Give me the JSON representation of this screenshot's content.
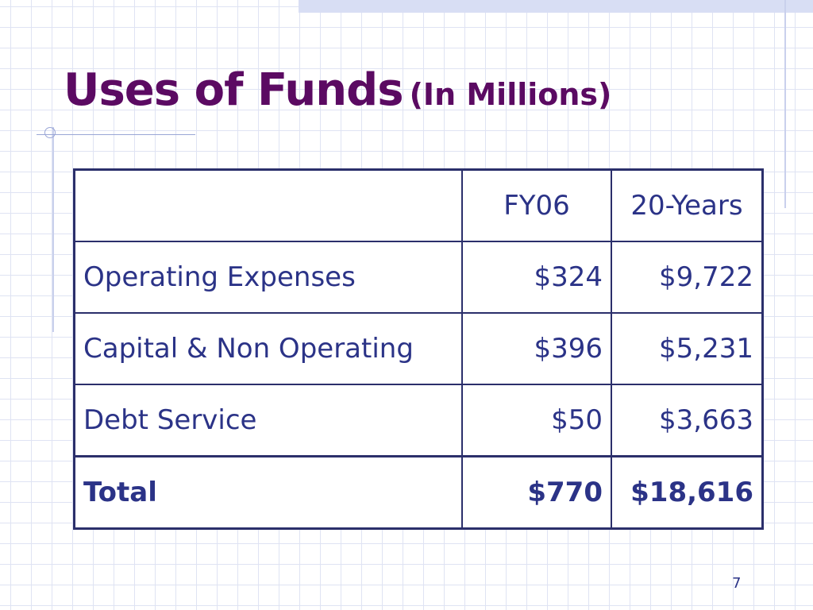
{
  "slide": {
    "title": "Uses of Funds",
    "subtitle": "(In Millions)",
    "page_number": "7"
  },
  "table": {
    "columns": [
      "",
      "FY06",
      "20-Years"
    ],
    "rows": [
      {
        "label": "Operating Expenses",
        "fy06": "$324",
        "years20": "$9,722"
      },
      {
        "label": "Capital & Non Operating",
        "fy06": "$396",
        "years20": "$5,231"
      },
      {
        "label": "Debt Service",
        "fy06": "$50",
        "years20": "$3,663"
      }
    ],
    "total": {
      "label": "Total",
      "fy06": "$770",
      "years20": "$18,616"
    }
  },
  "colors": {
    "title": "#5b0a62",
    "text": "#2b3387",
    "border": "#2b2f6b",
    "grid": "#dfe3f3"
  }
}
